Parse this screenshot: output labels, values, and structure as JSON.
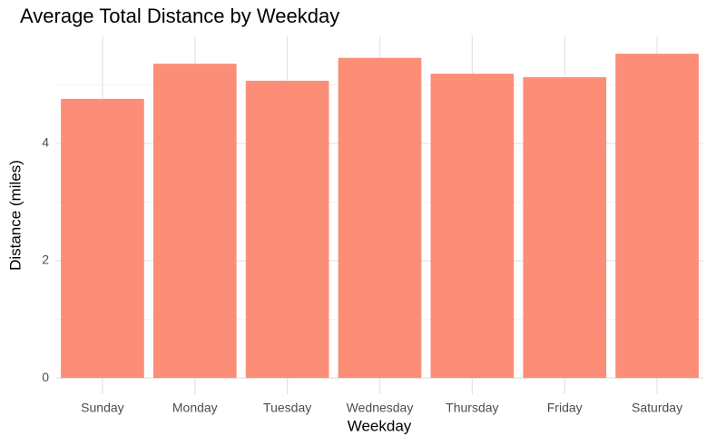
{
  "chart_data": {
    "type": "bar",
    "title": "Average Total Distance by Weekday",
    "x_label": "Weekday",
    "y_label": "Distance (miles)",
    "categories": [
      "Sunday",
      "Monday",
      "Tuesday",
      "Wednesday",
      "Thursday",
      "Friday",
      "Saturday"
    ],
    "values": [
      4.76,
      5.36,
      5.07,
      5.46,
      5.19,
      5.13,
      5.53
    ],
    "color": "#fc8d77",
    "ylim": [
      -0.2775,
      5.8275
    ],
    "yticks": [
      0,
      2,
      4
    ],
    "yminor": [
      1,
      3,
      5
    ],
    "grid": true
  }
}
